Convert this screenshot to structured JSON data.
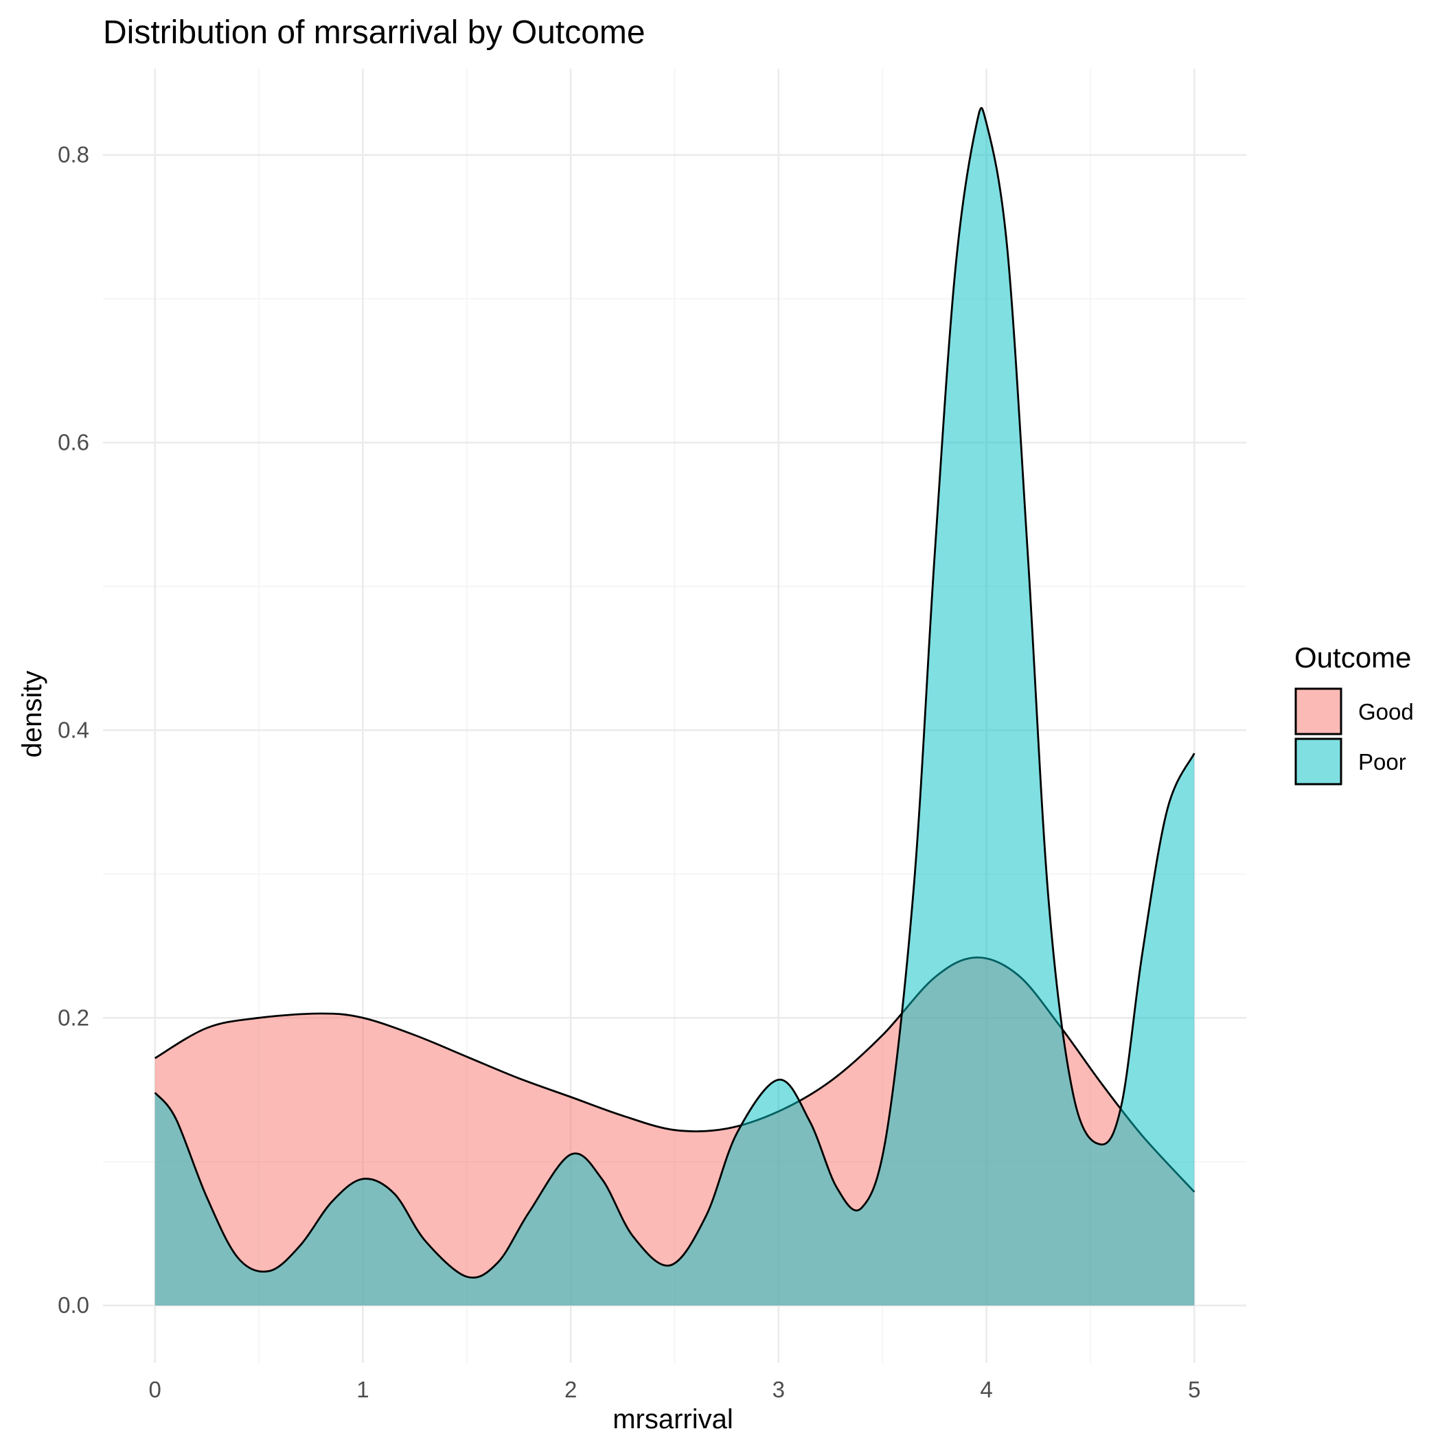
{
  "chart_data": {
    "type": "area",
    "title": "Distribution of mrsarrival by Outcome",
    "xlabel": "mrsarrival",
    "ylabel": "density",
    "xlim": [
      -0.25,
      5.25
    ],
    "ylim": [
      -0.04,
      0.86
    ],
    "xticks": [
      "0",
      "1",
      "2",
      "3",
      "4",
      "5"
    ],
    "yticks": [
      "0.0",
      "0.2",
      "0.4",
      "0.6",
      "0.8"
    ],
    "grid": true,
    "legend": {
      "title": "Outcome",
      "position": "right",
      "items": [
        "Good",
        "Poor"
      ]
    },
    "series": [
      {
        "name": "Good",
        "color": "#F8766D",
        "x": [
          0,
          0.25,
          0.5,
          0.8,
          1.0,
          1.25,
          1.5,
          1.75,
          2.0,
          2.25,
          2.5,
          2.75,
          3.0,
          3.25,
          3.5,
          3.75,
          3.95,
          4.15,
          4.35,
          4.55,
          4.75,
          5.0
        ],
        "y": [
          0.172,
          0.193,
          0.2,
          0.203,
          0.2,
          0.188,
          0.173,
          0.158,
          0.145,
          0.132,
          0.122,
          0.123,
          0.135,
          0.156,
          0.188,
          0.228,
          0.242,
          0.23,
          0.195,
          0.155,
          0.118,
          0.079
        ]
      },
      {
        "name": "Poor",
        "color": "#00BFC4",
        "x": [
          0,
          0.1,
          0.25,
          0.4,
          0.55,
          0.7,
          0.85,
          1.0,
          1.15,
          1.3,
          1.5,
          1.65,
          1.8,
          2.0,
          2.15,
          2.3,
          2.48,
          2.65,
          2.8,
          3.0,
          3.15,
          3.28,
          3.4,
          3.52,
          3.65,
          3.75,
          3.85,
          3.95,
          4.0,
          4.1,
          4.2,
          4.3,
          4.42,
          4.55,
          4.65,
          4.75,
          4.87,
          5.0
        ],
        "y": [
          0.148,
          0.13,
          0.075,
          0.033,
          0.024,
          0.042,
          0.072,
          0.088,
          0.078,
          0.045,
          0.02,
          0.03,
          0.065,
          0.105,
          0.088,
          0.048,
          0.028,
          0.062,
          0.12,
          0.157,
          0.128,
          0.082,
          0.068,
          0.12,
          0.29,
          0.52,
          0.72,
          0.82,
          0.822,
          0.735,
          0.52,
          0.28,
          0.145,
          0.112,
          0.14,
          0.245,
          0.345,
          0.384
        ]
      }
    ]
  }
}
